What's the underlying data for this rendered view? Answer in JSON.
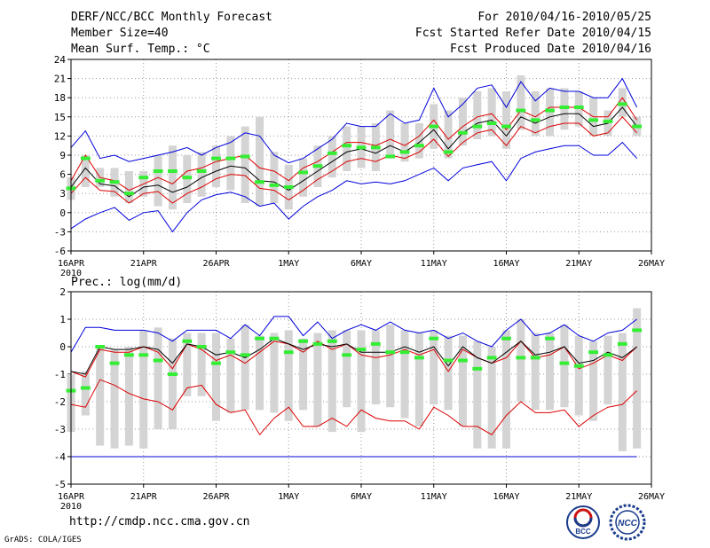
{
  "header": {
    "title": "DERF/NCC/BCC Monthly Forecast",
    "member_size": "Member Size=40",
    "variable": "Mean Surf. Temp.: °C",
    "period": "For 2010/04/16-2010/05/25",
    "start_date": "Fcst Started Refer Date 2010/04/15",
    "produced_date": "Fcst Produced Date 2010/04/16"
  },
  "footer": {
    "url": "http://cmdp.ncc.cma.gov.cn",
    "credit": "GrADS: COLA/IGES",
    "logo1_text": "BCC",
    "logo2_text": "NCC"
  },
  "colors": {
    "ensemble_range": "#0000dd",
    "spread_band": "#dd0000",
    "ensemble_mean": "#000000",
    "observed": "#33ee33",
    "member_box": "#d4d4d4",
    "grid": "#999999"
  },
  "chart_data": [
    {
      "type": "line",
      "title": "Mean Surf. Temp.: °C",
      "ylabel": "°C",
      "ylim": [
        -6,
        24
      ],
      "yticks": [
        -6,
        -3,
        0,
        3,
        6,
        9,
        12,
        15,
        18,
        21,
        24
      ],
      "day_range": [
        16,
        56
      ],
      "xticks": [
        {
          "day": 16,
          "label": "16APR"
        },
        {
          "day": 21,
          "label": "21APR"
        },
        {
          "day": 26,
          "label": "26APR"
        },
        {
          "day": 31,
          "label": "1MAY"
        },
        {
          "day": 36,
          "label": "6MAY"
        },
        {
          "day": 41,
          "label": "11MAY"
        },
        {
          "day": 46,
          "label": "16MAY"
        },
        {
          "day": 51,
          "label": "21MAY"
        },
        {
          "day": 56,
          "label": "26MAY"
        }
      ],
      "year_label": "2010",
      "days": [
        16,
        17,
        18,
        19,
        20,
        21,
        22,
        23,
        24,
        25,
        26,
        27,
        28,
        29,
        30,
        31,
        32,
        33,
        34,
        35,
        36,
        37,
        38,
        39,
        40,
        41,
        42,
        43,
        44,
        45,
        46,
        47,
        48,
        49,
        50,
        51,
        52,
        53,
        54,
        55
      ],
      "max": [
        10.2,
        12.8,
        8.5,
        9.0,
        8.0,
        8.5,
        9.0,
        9.5,
        10.2,
        9.0,
        10.2,
        11.0,
        12.5,
        12.0,
        9.0,
        7.8,
        8.5,
        10.0,
        11.5,
        14.0,
        13.5,
        13.5,
        15.5,
        14.0,
        14.5,
        19.5,
        15.0,
        17.0,
        19.5,
        20.0,
        16.5,
        20.5,
        17.5,
        19.5,
        19.0,
        19.0,
        18.0,
        18.0,
        21.0,
        16.5
      ],
      "min": [
        -2.5,
        -1.0,
        0.0,
        0.8,
        -1.2,
        0.0,
        0.3,
        -3.0,
        0.0,
        2.0,
        2.8,
        3.2,
        2.5,
        1.0,
        1.5,
        -1.0,
        1.0,
        2.5,
        3.5,
        5.0,
        4.5,
        4.8,
        4.5,
        5.0,
        6.0,
        7.0,
        5.0,
        7.0,
        7.5,
        8.0,
        5.0,
        8.5,
        9.5,
        10.0,
        10.5,
        10.5,
        9.0,
        9.0,
        11.0,
        8.5
      ],
      "upper": [
        5.0,
        9.0,
        5.5,
        5.0,
        3.5,
        4.5,
        5.5,
        4.5,
        6.5,
        7.0,
        8.0,
        8.5,
        9.0,
        7.0,
        6.5,
        5.0,
        7.0,
        8.0,
        9.5,
        11.0,
        11.0,
        10.5,
        11.5,
        10.5,
        12.0,
        14.5,
        11.5,
        13.5,
        15.0,
        15.5,
        13.0,
        16.0,
        15.0,
        16.5,
        16.5,
        16.5,
        15.0,
        15.0,
        18.0,
        14.5
      ],
      "mean": [
        4.0,
        7.0,
        4.5,
        4.2,
        2.5,
        4.0,
        4.3,
        3.2,
        4.0,
        5.5,
        6.5,
        7.3,
        7.0,
        5.0,
        4.8,
        3.5,
        5.0,
        6.5,
        8.0,
        9.5,
        10.0,
        9.3,
        10.5,
        9.5,
        11.0,
        13.0,
        10.0,
        12.5,
        14.0,
        14.5,
        12.0,
        15.0,
        14.0,
        15.0,
        15.5,
        15.5,
        13.5,
        14.0,
        16.5,
        13.5
      ],
      "lower": [
        3.0,
        5.5,
        3.5,
        3.3,
        1.5,
        3.0,
        3.3,
        1.5,
        3.0,
        4.0,
        5.3,
        6.0,
        5.8,
        3.8,
        3.5,
        2.0,
        3.5,
        5.2,
        6.5,
        8.0,
        8.5,
        8.0,
        9.0,
        8.5,
        9.5,
        11.5,
        8.8,
        11.0,
        12.5,
        13.0,
        10.5,
        13.5,
        12.5,
        13.5,
        14.0,
        14.0,
        12.0,
        12.5,
        15.0,
        12.5
      ],
      "box_high": [
        5.5,
        9.0,
        7.0,
        7.0,
        6.5,
        6.5,
        9.0,
        10.5,
        9.0,
        9.5,
        10.5,
        12.0,
        13.5,
        15.0,
        9.5,
        7.5,
        8.5,
        10.5,
        12.0,
        13.5,
        13.5,
        14.0,
        16.0,
        14.0,
        14.0,
        17.0,
        16.0,
        18.0,
        19.0,
        19.5,
        19.0,
        21.5,
        19.0,
        19.5,
        19.5,
        19.0,
        18.0,
        16.0,
        19.5,
        15.0
      ],
      "box_low": [
        2.0,
        4.0,
        4.0,
        2.5,
        1.5,
        2.5,
        1.0,
        0.5,
        1.5,
        2.5,
        4.0,
        3.5,
        1.5,
        1.0,
        1.5,
        0.5,
        2.5,
        4.0,
        5.5,
        6.5,
        7.0,
        6.5,
        8.5,
        8.0,
        8.5,
        10.0,
        8.5,
        10.5,
        11.5,
        12.0,
        10.0,
        13.0,
        12.0,
        12.0,
        13.0,
        13.5,
        12.0,
        12.0,
        15.0,
        12.0
      ],
      "observed": [
        3.8,
        8.5,
        5.0,
        4.8,
        3.0,
        5.5,
        6.5,
        6.5,
        5.5,
        6.5,
        8.5,
        8.5,
        8.8,
        4.8,
        4.3,
        4.0,
        6.3,
        7.3,
        9.3,
        10.5,
        10.2,
        10.2,
        8.8,
        9.5,
        10.5,
        13.5,
        9.5,
        12.5,
        13.5,
        14.0,
        13.5,
        16.0,
        14.5,
        16.0,
        16.5,
        16.5,
        14.5,
        14.3,
        17.0,
        13.5
      ]
    },
    {
      "type": "line",
      "title": "Prec.: log(mm/d)",
      "ylabel": "log(mm/d)",
      "ylim": [
        -5,
        2
      ],
      "yticks": [
        -5,
        -4,
        -3,
        -2,
        -1,
        0,
        1,
        2
      ],
      "day_range": [
        16,
        56
      ],
      "xticks": [
        {
          "day": 16,
          "label": "16APR"
        },
        {
          "day": 21,
          "label": "21APR"
        },
        {
          "day": 26,
          "label": "26APR"
        },
        {
          "day": 31,
          "label": "1MAY"
        },
        {
          "day": 36,
          "label": "6MAY"
        },
        {
          "day": 41,
          "label": "11MAY"
        },
        {
          "day": 46,
          "label": "16MAY"
        },
        {
          "day": 51,
          "label": "21MAY"
        },
        {
          "day": 56,
          "label": "26MAY"
        }
      ],
      "year_label": "2010",
      "days": [
        16,
        17,
        18,
        19,
        20,
        21,
        22,
        23,
        24,
        25,
        26,
        27,
        28,
        29,
        30,
        31,
        32,
        33,
        34,
        35,
        36,
        37,
        38,
        39,
        40,
        41,
        42,
        43,
        44,
        45,
        46,
        47,
        48,
        49,
        50,
        51,
        52,
        53,
        54,
        55
      ],
      "max": [
        -0.2,
        0.7,
        0.7,
        0.6,
        0.6,
        0.6,
        0.5,
        0.2,
        0.6,
        0.6,
        0.6,
        0.3,
        0.8,
        0.4,
        1.1,
        1.1,
        0.4,
        0.9,
        0.3,
        0.6,
        0.8,
        0.6,
        0.9,
        0.6,
        0.5,
        0.6,
        0.3,
        0.5,
        0.2,
        0.0,
        0.6,
        1.0,
        0.4,
        0.5,
        0.8,
        0.4,
        0.2,
        0.5,
        0.6,
        1.0
      ],
      "min": [
        -4.0,
        -4.0,
        -4.0,
        -4.0,
        -4.0,
        -4.0,
        -4.0,
        -4.0,
        -4.0,
        -4.0,
        -4.0,
        -4.0,
        -4.0,
        -4.0,
        -4.0,
        -4.0,
        -4.0,
        -4.0,
        -4.0,
        -4.0,
        -4.0,
        -4.0,
        -4.0,
        -4.0,
        -4.0,
        -4.0,
        -4.0,
        -4.0,
        -4.0,
        -4.0,
        -4.0,
        -4.0,
        -4.0,
        -4.0,
        -4.0,
        -4.0,
        -4.0,
        -4.0,
        -4.0,
        -4.0
      ],
      "upper": [
        -0.9,
        -1.1,
        -0.1,
        -0.2,
        -0.2,
        0.0,
        -0.2,
        -0.8,
        0.1,
        -0.1,
        -0.5,
        -0.3,
        -0.6,
        -0.2,
        0.2,
        0.1,
        -0.2,
        0.2,
        -0.1,
        0.1,
        -0.3,
        -0.4,
        -0.3,
        -0.1,
        -0.3,
        -0.1,
        -0.9,
        -0.1,
        -0.4,
        -0.6,
        -0.4,
        0.2,
        -0.4,
        -0.3,
        0.0,
        -0.8,
        -0.6,
        -0.3,
        -0.5,
        0.0
      ],
      "mean": [
        -0.9,
        -1.0,
        0.0,
        -0.1,
        -0.1,
        0.0,
        -0.1,
        -0.6,
        0.1,
        0.0,
        -0.3,
        -0.2,
        -0.4,
        -0.1,
        0.3,
        0.1,
        -0.1,
        0.1,
        0.0,
        0.1,
        -0.2,
        -0.2,
        -0.2,
        0.0,
        -0.2,
        0.0,
        -0.7,
        0.0,
        -0.4,
        -0.6,
        -0.2,
        0.2,
        -0.3,
        -0.2,
        0.0,
        -0.6,
        -0.5,
        -0.2,
        -0.4,
        0.0
      ],
      "lower": [
        -2.1,
        -2.2,
        -1.2,
        -1.4,
        -1.7,
        -1.9,
        -2.0,
        -2.3,
        -1.5,
        -1.4,
        -2.1,
        -2.4,
        -2.3,
        -3.2,
        -2.6,
        -2.2,
        -2.9,
        -2.9,
        -2.6,
        -2.9,
        -2.3,
        -2.6,
        -2.7,
        -2.7,
        -3.0,
        -2.2,
        -2.5,
        -2.9,
        -2.9,
        -3.2,
        -2.5,
        -2.0,
        -2.4,
        -2.4,
        -2.3,
        -2.9,
        -2.5,
        -2.2,
        -2.1,
        -1.6
      ],
      "box_high": [
        -1.0,
        -0.9,
        0.0,
        -0.1,
        0.0,
        0.6,
        0.7,
        0.3,
        0.5,
        0.5,
        0.5,
        0.3,
        0.8,
        0.4,
        0.5,
        0.6,
        0.3,
        0.5,
        0.6,
        0.6,
        0.6,
        0.6,
        0.8,
        0.6,
        0.5,
        0.6,
        0.4,
        0.4,
        0.2,
        0.0,
        0.6,
        1.0,
        0.5,
        0.5,
        0.8,
        0.4,
        0.2,
        0.4,
        0.5,
        1.4
      ],
      "box_low": [
        -3.1,
        -2.5,
        -3.6,
        -3.7,
        -3.6,
        -3.7,
        -3.0,
        -3.0,
        -1.8,
        -1.8,
        -2.7,
        -2.4,
        -2.3,
        -2.3,
        -2.4,
        -2.7,
        -2.3,
        -2.9,
        -3.1,
        -2.2,
        -3.1,
        -2.1,
        -2.2,
        -2.6,
        -2.9,
        -2.1,
        -2.3,
        -2.9,
        -3.7,
        -3.7,
        -3.7,
        -2.0,
        -2.3,
        -2.3,
        -2.2,
        -2.5,
        -2.7,
        -2.1,
        -3.8,
        -3.7
      ],
      "observed": [
        -1.6,
        -1.5,
        0.0,
        -0.6,
        -0.3,
        -0.3,
        -0.5,
        -1.0,
        0.2,
        0.0,
        -0.6,
        -0.2,
        -0.3,
        0.3,
        0.3,
        -0.2,
        0.2,
        0.1,
        0.2,
        -0.3,
        -0.1,
        0.1,
        -0.2,
        -0.2,
        -0.4,
        0.3,
        -0.5,
        -0.5,
        -0.8,
        -0.4,
        0.3,
        -0.4,
        -0.4,
        0.3,
        -0.6,
        -0.7,
        -0.2,
        -0.3,
        0.1,
        0.6
      ]
    }
  ]
}
